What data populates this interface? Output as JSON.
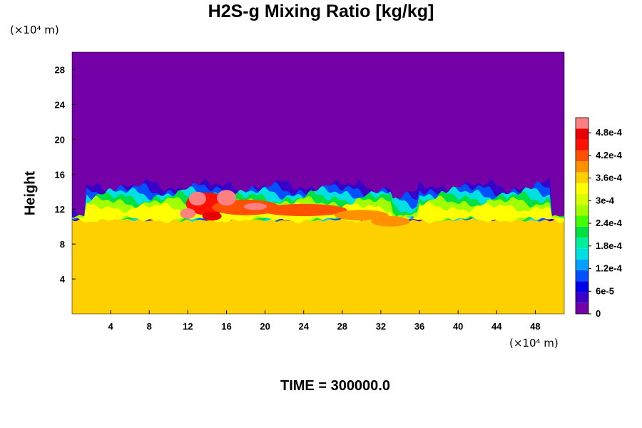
{
  "title": "H2S-g Mixing Ratio [kg/kg]",
  "y_unit": "(×10⁴ m)",
  "x_unit": "(×10⁴ m)",
  "time_label": "TIME = 300000.0",
  "chart_data": {
    "type": "heatmap",
    "title": "H2S-g Mixing Ratio [kg/kg]",
    "xlabel": "",
    "ylabel": "Height",
    "x_unit": "(×10⁴ m)",
    "y_unit": "(×10⁴ m)",
    "xlim": [
      0,
      51
    ],
    "ylim": [
      0,
      30
    ],
    "x_ticks": [
      4,
      8,
      12,
      16,
      20,
      24,
      28,
      32,
      36,
      40,
      44,
      48
    ],
    "y_ticks": [
      4,
      8,
      12,
      16,
      20,
      24,
      28
    ],
    "colorbar": {
      "min": 0,
      "max": 0.00052,
      "tick_values": [
        0,
        6e-05,
        0.00012,
        0.00018,
        0.00024,
        0.0003,
        0.00036,
        0.00042,
        0.00048
      ],
      "tick_labels": [
        "0",
        "6e-5",
        "1.2e-4",
        "1.8e-4",
        "2.4e-4",
        "3e-4",
        "3.6e-4",
        "4.2e-4",
        "4.8e-4"
      ],
      "colors": [
        "#7400a8",
        "#3a00c8",
        "#0000e8",
        "#0050ff",
        "#00a0ff",
        "#00e0e0",
        "#00f0a0",
        "#00e040",
        "#40ff00",
        "#a0ff00",
        "#d8ff00",
        "#ffff00",
        "#ffd000",
        "#ff9000",
        "#ff5000",
        "#ff1000",
        "#e80000",
        "#ff8080"
      ]
    },
    "field_summary": {
      "lower_layer_value": 0.00035,
      "upper_layer_value": 0,
      "interface_height_approx": 11,
      "turbulent_mixing_top_approx": 15,
      "max_value_region": "x 10–30, height 10–14"
    },
    "time": 300000.0
  }
}
